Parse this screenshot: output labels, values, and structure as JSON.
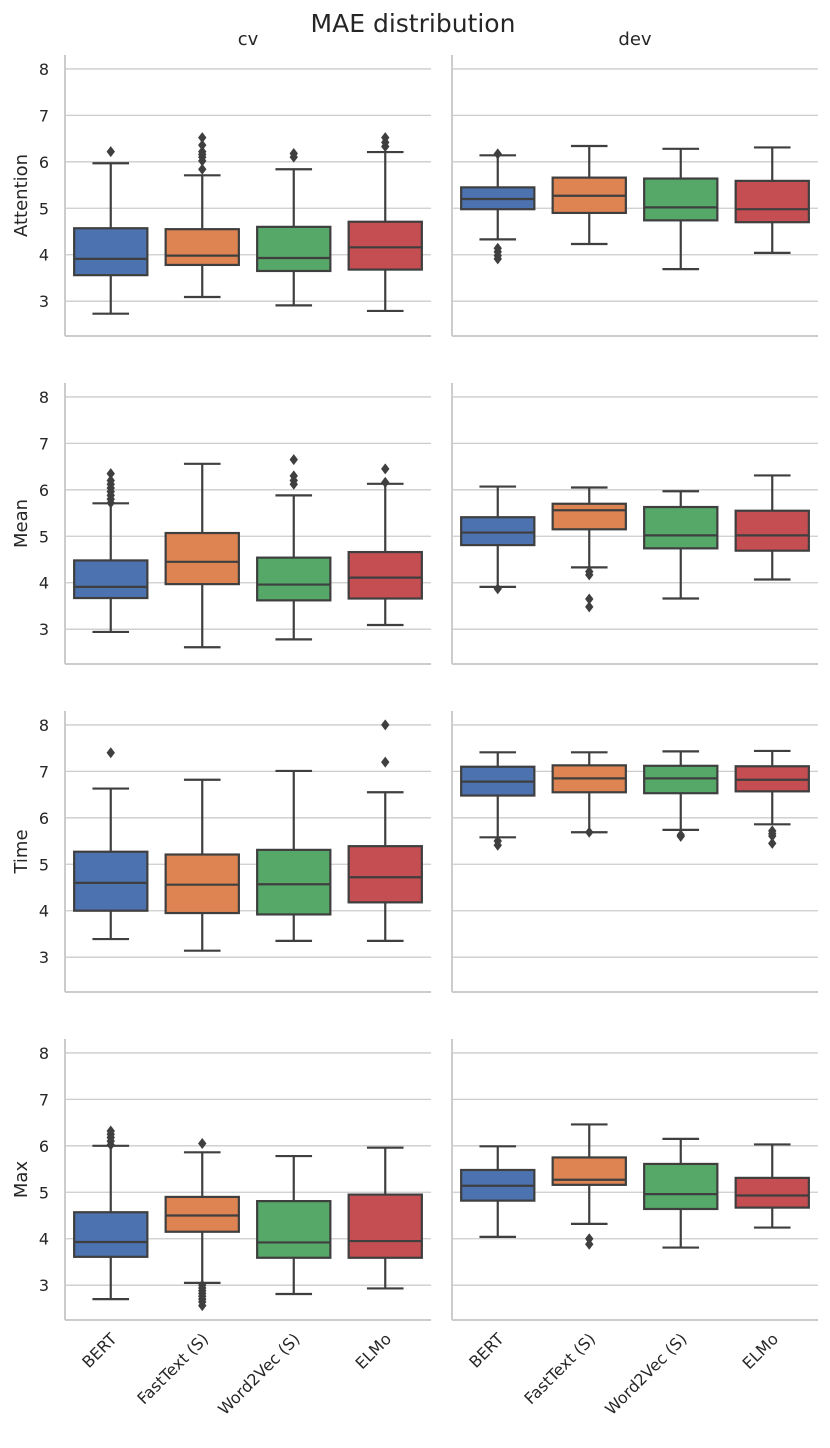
{
  "chart_data": {
    "type": "boxplot",
    "title": "MAE distribution",
    "columns": [
      "cv",
      "dev"
    ],
    "rows": [
      "Attention",
      "Mean",
      "Time",
      "Max"
    ],
    "categories": [
      "BERT",
      "FastText (S)",
      "Word2Vec (S)",
      "ELMo"
    ],
    "colors": [
      "#4c72b0",
      "#dd8452",
      "#55a868",
      "#c44e52"
    ],
    "y_ticks": [
      3,
      4,
      5,
      6,
      7,
      8
    ],
    "ylim": [
      2.25,
      8.3
    ],
    "grid": true,
    "panels": [
      {
        "row": "Attention",
        "column": "cv",
        "boxes": [
          {
            "category": "BERT",
            "whisker_low": 2.73,
            "q1": 3.56,
            "median": 3.91,
            "q3": 4.57,
            "whisker_high": 5.97,
            "outliers": [
              6.22
            ]
          },
          {
            "category": "FastText (S)",
            "whisker_low": 3.09,
            "q1": 3.78,
            "median": 3.98,
            "q3": 4.55,
            "whisker_high": 5.71,
            "outliers": [
              5.84,
              6.02,
              6.1,
              6.16,
              6.22,
              6.36,
              6.52
            ]
          },
          {
            "category": "Word2Vec (S)",
            "whisker_low": 2.91,
            "q1": 3.65,
            "median": 3.93,
            "q3": 4.6,
            "whisker_high": 5.84,
            "outliers": [
              6.1,
              6.18
            ]
          },
          {
            "category": "ELMo",
            "whisker_low": 2.79,
            "q1": 3.68,
            "median": 4.16,
            "q3": 4.71,
            "whisker_high": 6.21,
            "outliers": [
              6.33,
              6.42,
              6.52
            ]
          }
        ]
      },
      {
        "row": "Attention",
        "column": "dev",
        "boxes": [
          {
            "category": "BERT",
            "whisker_low": 4.33,
            "q1": 4.98,
            "median": 5.2,
            "q3": 5.45,
            "whisker_high": 6.14,
            "outliers": [
              4.14,
              4.06,
              3.98,
              3.91,
              6.17
            ]
          },
          {
            "category": "FastText (S)",
            "whisker_low": 4.23,
            "q1": 4.9,
            "median": 5.27,
            "q3": 5.66,
            "whisker_high": 6.34,
            "outliers": []
          },
          {
            "category": "Word2Vec (S)",
            "whisker_low": 3.69,
            "q1": 4.74,
            "median": 5.02,
            "q3": 5.64,
            "whisker_high": 6.28,
            "outliers": []
          },
          {
            "category": "ELMo",
            "whisker_low": 4.04,
            "q1": 4.7,
            "median": 4.98,
            "q3": 5.59,
            "whisker_high": 6.31,
            "outliers": []
          }
        ]
      },
      {
        "row": "Mean",
        "column": "cv",
        "boxes": [
          {
            "category": "BERT",
            "whisker_low": 2.94,
            "q1": 3.67,
            "median": 3.91,
            "q3": 4.48,
            "whisker_high": 5.71,
            "outliers": [
              5.72,
              5.8,
              5.88,
              5.96,
              6.04,
              6.12,
              6.2,
              6.35
            ]
          },
          {
            "category": "FastText (S)",
            "whisker_low": 2.61,
            "q1": 3.97,
            "median": 4.45,
            "q3": 5.07,
            "whisker_high": 6.56,
            "outliers": []
          },
          {
            "category": "Word2Vec (S)",
            "whisker_low": 2.78,
            "q1": 3.62,
            "median": 3.96,
            "q3": 4.54,
            "whisker_high": 5.88,
            "outliers": [
              6.12,
              6.2,
              6.3,
              6.65
            ]
          },
          {
            "category": "ELMo",
            "whisker_low": 3.09,
            "q1": 3.66,
            "median": 4.11,
            "q3": 4.66,
            "whisker_high": 6.13,
            "outliers": [
              6.16,
              6.45
            ]
          }
        ]
      },
      {
        "row": "Mean",
        "column": "dev",
        "boxes": [
          {
            "category": "BERT",
            "whisker_low": 3.91,
            "q1": 4.81,
            "median": 5.08,
            "q3": 5.41,
            "whisker_high": 6.07,
            "outliers": [
              3.87
            ]
          },
          {
            "category": "FastText (S)",
            "whisker_low": 4.33,
            "q1": 5.15,
            "median": 5.56,
            "q3": 5.7,
            "whisker_high": 6.05,
            "outliers": [
              4.24,
              4.17,
              3.65,
              3.48
            ]
          },
          {
            "category": "Word2Vec (S)",
            "whisker_low": 3.66,
            "q1": 4.74,
            "median": 5.02,
            "q3": 5.63,
            "whisker_high": 5.97,
            "outliers": []
          },
          {
            "category": "ELMo",
            "whisker_low": 4.07,
            "q1": 4.69,
            "median": 5.02,
            "q3": 5.55,
            "whisker_high": 6.31,
            "outliers": []
          }
        ]
      },
      {
        "row": "Time",
        "column": "cv",
        "boxes": [
          {
            "category": "BERT",
            "whisker_low": 3.39,
            "q1": 4.0,
            "median": 4.6,
            "q3": 5.27,
            "whisker_high": 6.63,
            "outliers": [
              7.4
            ]
          },
          {
            "category": "FastText (S)",
            "whisker_low": 3.14,
            "q1": 3.95,
            "median": 4.56,
            "q3": 5.21,
            "whisker_high": 6.82,
            "outliers": []
          },
          {
            "category": "Word2Vec (S)",
            "whisker_low": 3.35,
            "q1": 3.92,
            "median": 4.57,
            "q3": 5.31,
            "whisker_high": 7.01,
            "outliers": []
          },
          {
            "category": "ELMo",
            "whisker_low": 3.35,
            "q1": 4.18,
            "median": 4.72,
            "q3": 5.39,
            "whisker_high": 6.55,
            "outliers": [
              7.2,
              8.0
            ]
          }
        ]
      },
      {
        "row": "Time",
        "column": "dev",
        "boxes": [
          {
            "category": "BERT",
            "whisker_low": 5.58,
            "q1": 6.48,
            "median": 6.78,
            "q3": 7.1,
            "whisker_high": 7.41,
            "outliers": [
              5.5,
              5.41
            ]
          },
          {
            "category": "FastText (S)",
            "whisker_low": 5.69,
            "q1": 6.55,
            "median": 6.85,
            "q3": 7.13,
            "whisker_high": 7.41,
            "outliers": [
              5.69
            ]
          },
          {
            "category": "Word2Vec (S)",
            "whisker_low": 5.74,
            "q1": 6.53,
            "median": 6.85,
            "q3": 7.12,
            "whisker_high": 7.43,
            "outliers": [
              5.63,
              5.6
            ]
          },
          {
            "category": "ELMo",
            "whisker_low": 5.86,
            "q1": 6.57,
            "median": 6.82,
            "q3": 7.11,
            "whisker_high": 7.44,
            "outliers": [
              5.72,
              5.66,
              5.61,
              5.45
            ]
          }
        ]
      },
      {
        "row": "Max",
        "column": "cv",
        "boxes": [
          {
            "category": "BERT",
            "whisker_low": 2.7,
            "q1": 3.61,
            "median": 3.93,
            "q3": 4.57,
            "whisker_high": 6.0,
            "outliers": [
              6.02,
              6.1,
              6.18,
              6.25,
              6.32
            ]
          },
          {
            "category": "FastText (S)",
            "whisker_low": 3.05,
            "q1": 4.15,
            "median": 4.5,
            "q3": 4.9,
            "whisker_high": 5.86,
            "outliers": [
              6.05,
              3.0,
              2.94,
              2.88,
              2.82,
              2.76,
              2.7,
              2.64,
              2.56
            ]
          },
          {
            "category": "Word2Vec (S)",
            "whisker_low": 2.81,
            "q1": 3.59,
            "median": 3.92,
            "q3": 4.81,
            "whisker_high": 5.78,
            "outliers": []
          },
          {
            "category": "ELMo",
            "whisker_low": 2.93,
            "q1": 3.59,
            "median": 3.95,
            "q3": 4.95,
            "whisker_high": 5.96,
            "outliers": []
          }
        ]
      },
      {
        "row": "Max",
        "column": "dev",
        "boxes": [
          {
            "category": "BERT",
            "whisker_low": 4.04,
            "q1": 4.82,
            "median": 5.14,
            "q3": 5.48,
            "whisker_high": 5.99,
            "outliers": []
          },
          {
            "category": "FastText (S)",
            "whisker_low": 4.32,
            "q1": 5.16,
            "median": 5.27,
            "q3": 5.75,
            "whisker_high": 6.46,
            "outliers": [
              4.0,
              3.88
            ]
          },
          {
            "category": "Word2Vec (S)",
            "whisker_low": 3.81,
            "q1": 4.64,
            "median": 4.96,
            "q3": 5.61,
            "whisker_high": 6.15,
            "outliers": []
          },
          {
            "category": "ELMo",
            "whisker_low": 4.24,
            "q1": 4.67,
            "median": 4.93,
            "q3": 5.31,
            "whisker_high": 6.03,
            "outliers": []
          }
        ]
      }
    ]
  }
}
